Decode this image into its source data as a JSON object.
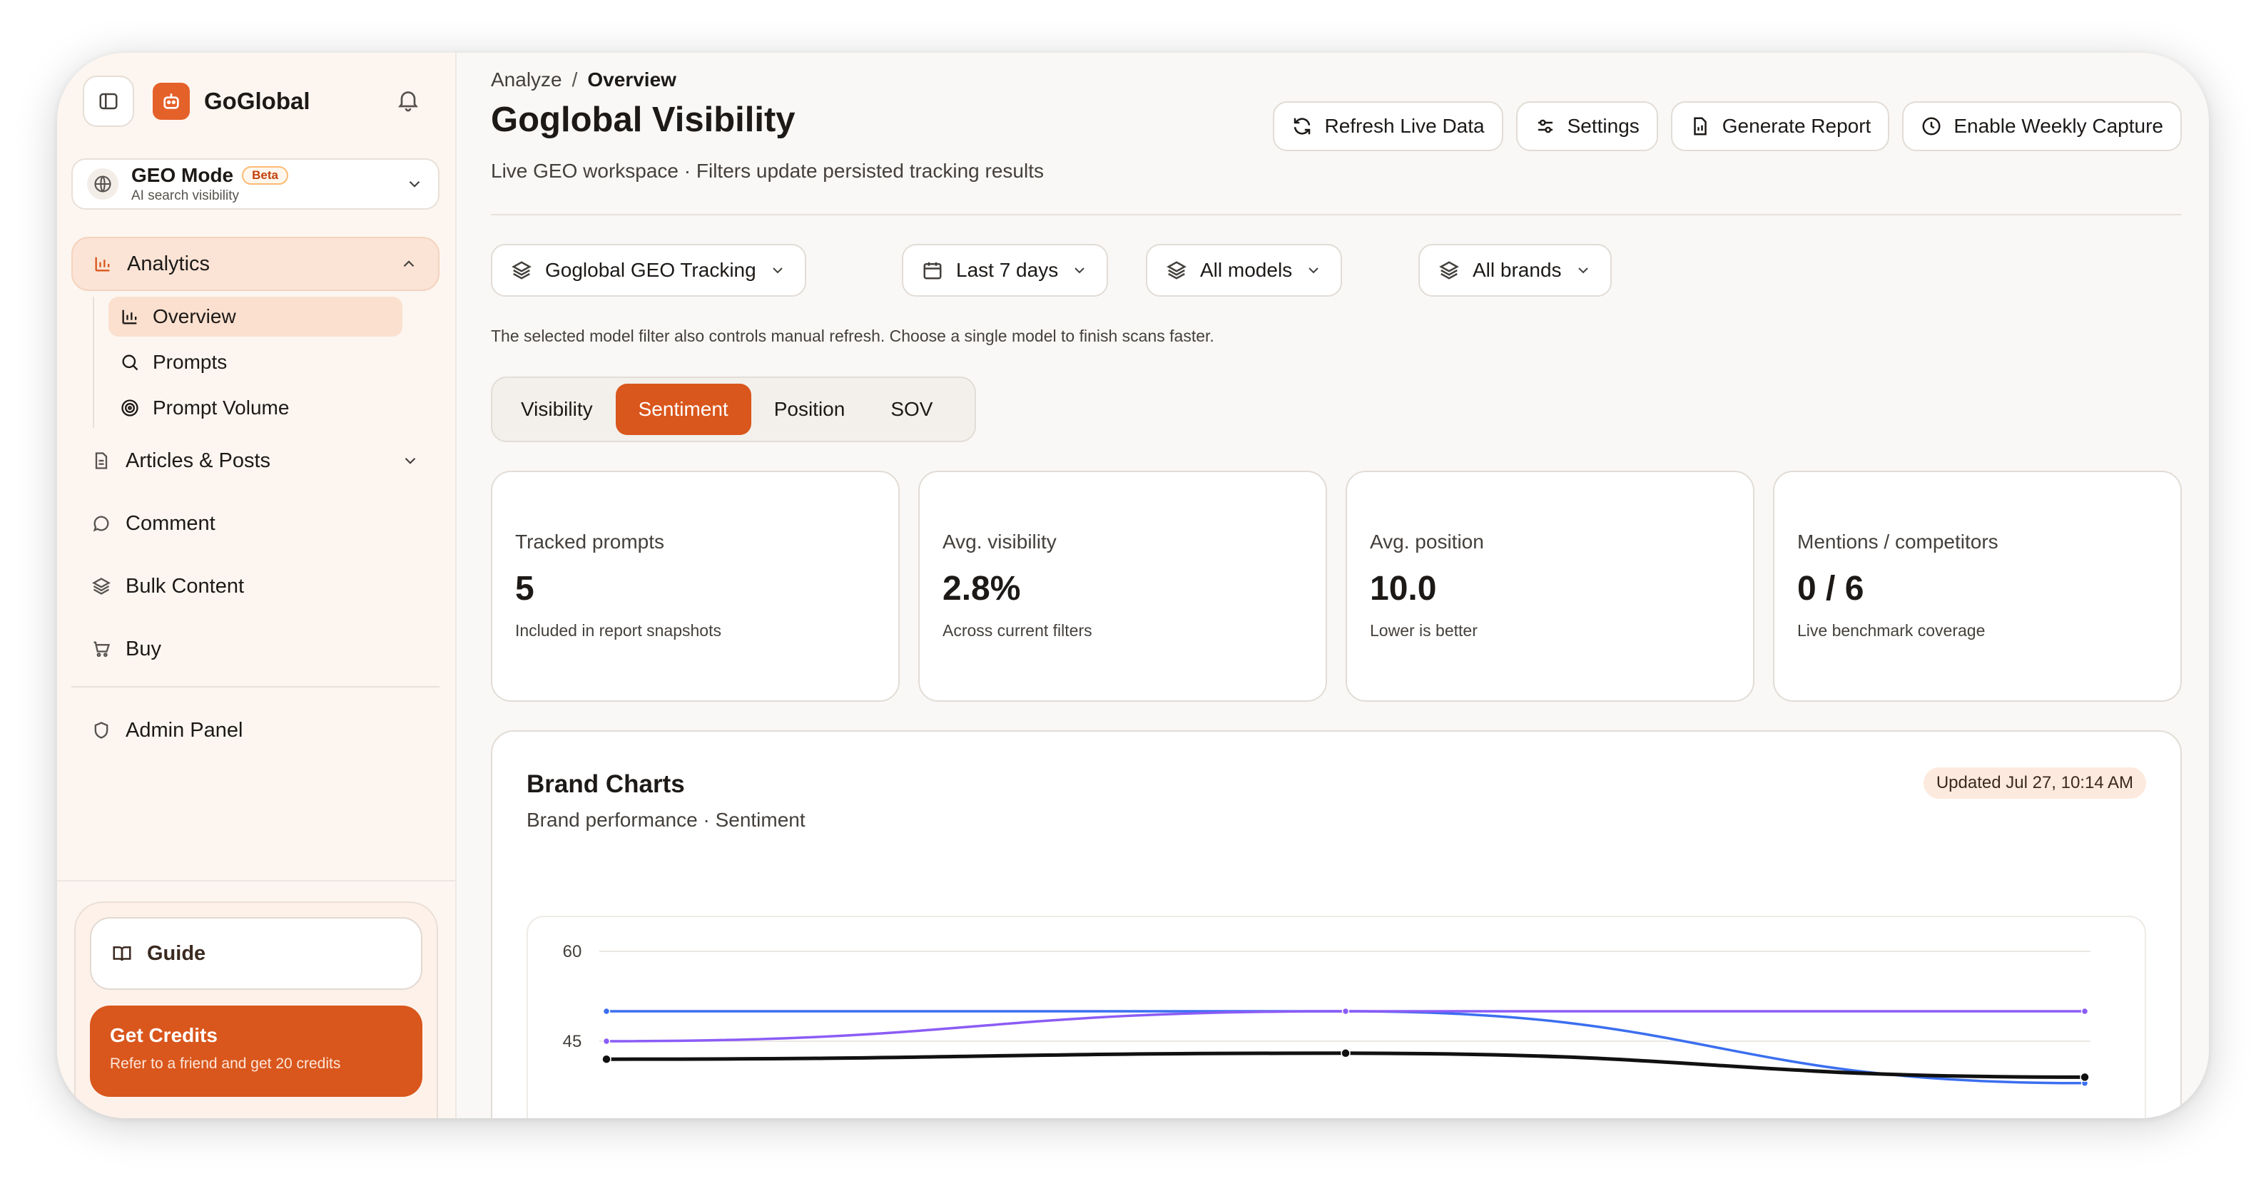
{
  "app": {
    "name": "GoGlobal"
  },
  "geo_mode": {
    "title": "GEO Mode",
    "badge": "Beta",
    "subtitle": "AI search visibility"
  },
  "nav": {
    "analytics": "Analytics",
    "sub": [
      "Overview",
      "Prompts",
      "Prompt Volume"
    ],
    "articles": "Articles & Posts",
    "comment": "Comment",
    "bulk": "Bulk Content",
    "buy": "Buy",
    "admin": "Admin Panel"
  },
  "sidebar_bottom": {
    "guide": "Guide",
    "credits_title": "Get Credits",
    "credits_sub": "Refer to a friend and get 20 credits"
  },
  "breadcrumb": {
    "parent": "Analyze",
    "sep": "/",
    "current": "Overview"
  },
  "header": {
    "title": "Goglobal Visibility",
    "subtitle": "Live GEO workspace · Filters update persisted tracking results"
  },
  "actions": {
    "refresh": "Refresh Live Data",
    "settings": "Settings",
    "report": "Generate Report",
    "weekly": "Enable Weekly Capture"
  },
  "filters": {
    "project": "Goglobal GEO Tracking",
    "range": "Last 7 days",
    "models": "All models",
    "brands": "All brands"
  },
  "hint": "The selected model filter also controls manual refresh. Choose a single model to finish scans faster.",
  "tabs": [
    "Visibility",
    "Sentiment",
    "Position",
    "SOV"
  ],
  "active_tab": "Sentiment",
  "stats": [
    {
      "label": "Tracked prompts",
      "value": "5",
      "note": "Included in report snapshots"
    },
    {
      "label": "Avg. visibility",
      "value": "2.8%",
      "note": "Across current filters"
    },
    {
      "label": "Avg. position",
      "value": "10.0",
      "note": "Lower is better"
    },
    {
      "label": "Mentions / competitors",
      "value": "0 / 6",
      "note": "Live benchmark coverage"
    }
  ],
  "chart_card": {
    "title": "Brand Charts",
    "subtitle": "Brand performance · Sentiment",
    "updated": "Updated Jul 27, 10:14 AM"
  },
  "colors": {
    "accent": "#d9561c",
    "accent_soft": "#fbe0cf"
  },
  "chart_data": {
    "type": "line",
    "y_ticks": [
      "60",
      "45"
    ],
    "ylim": [
      30,
      60
    ],
    "x": [
      0,
      1,
      2
    ],
    "series": [
      {
        "color": "#3b6ff0",
        "values": [
          50,
          50,
          38
        ]
      },
      {
        "color": "#8b5cf6",
        "values": [
          45,
          50,
          50
        ]
      },
      {
        "color": "#111111",
        "values": [
          42,
          43,
          39
        ]
      }
    ]
  }
}
